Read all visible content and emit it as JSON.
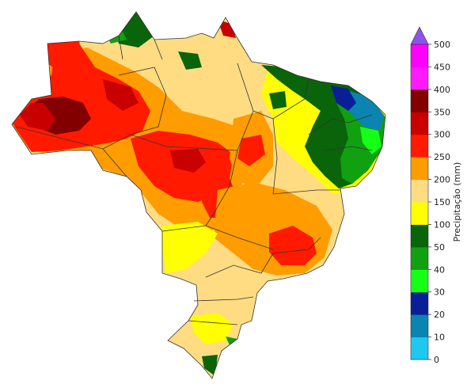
{
  "colorbar": {
    "label": "Precipitação (mm)",
    "ticks": [
      "0",
      "10",
      "20",
      "30",
      "40",
      "50",
      "100",
      "150",
      "200",
      "250",
      "300",
      "350",
      "400",
      "450",
      "500"
    ],
    "colors": [
      "#1ec8f0",
      "#0a84b0",
      "#0a1f96",
      "#16ff16",
      "#10a010",
      "#0a640a",
      "#ffff00",
      "#ffdc82",
      "#ff9c00",
      "#ff1a00",
      "#c80000",
      "#820000",
      "#ff1aff",
      "#ff00ff"
    ],
    "extend_color": "#8c55e8"
  }
}
